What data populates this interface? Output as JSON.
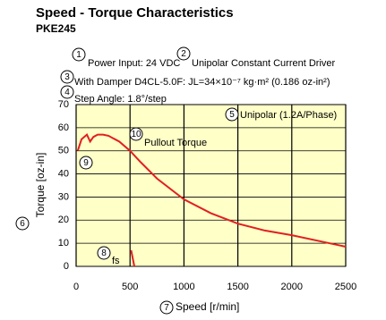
{
  "chart_data": {
    "type": "line",
    "title": "Speed - Torque Characteristics",
    "subtitle": "PKE245",
    "x_label": "Speed [r/min]",
    "y_label": "Torque [oz-in]",
    "annotations": [
      "Power Input: 24 VDC",
      "Unipolar Constant Current Driver",
      "With Damper D4CL-5.0F: JL=34×10⁻⁷ kg·m² (0.186 oz-in²)",
      "Step Angle: 1.8°/step",
      "Unipolar (1.2A/Phase)",
      "Pullout Torque",
      "fs"
    ],
    "callouts": [
      "1",
      "2",
      "3",
      "4",
      "5",
      "6",
      "7",
      "8",
      "9",
      "10"
    ],
    "xlim": [
      0,
      2500
    ],
    "xticks": [
      0,
      500,
      1000,
      1500,
      2000,
      2500
    ],
    "ylim": [
      0,
      70
    ],
    "yticks": [
      0,
      10,
      20,
      30,
      40,
      50,
      60,
      70
    ],
    "grid": true,
    "background": "#ffffc8",
    "series": [
      {
        "name": "Pullout Torque",
        "color": "#e02020",
        "x": [
          15,
          50,
          100,
          130,
          160,
          200,
          250,
          300,
          400,
          500,
          600,
          750,
          1000,
          1250,
          1500,
          1750,
          2000,
          2250,
          2500
        ],
        "values": [
          50,
          55,
          57,
          54,
          56,
          57,
          57,
          56.5,
          54,
          50,
          45,
          38,
          29,
          23,
          18.5,
          15.5,
          13.5,
          11,
          8.5
        ]
      },
      {
        "name": "fs",
        "color": "#e02020",
        "x": [
          510,
          540
        ],
        "values": [
          7,
          0
        ]
      }
    ]
  }
}
